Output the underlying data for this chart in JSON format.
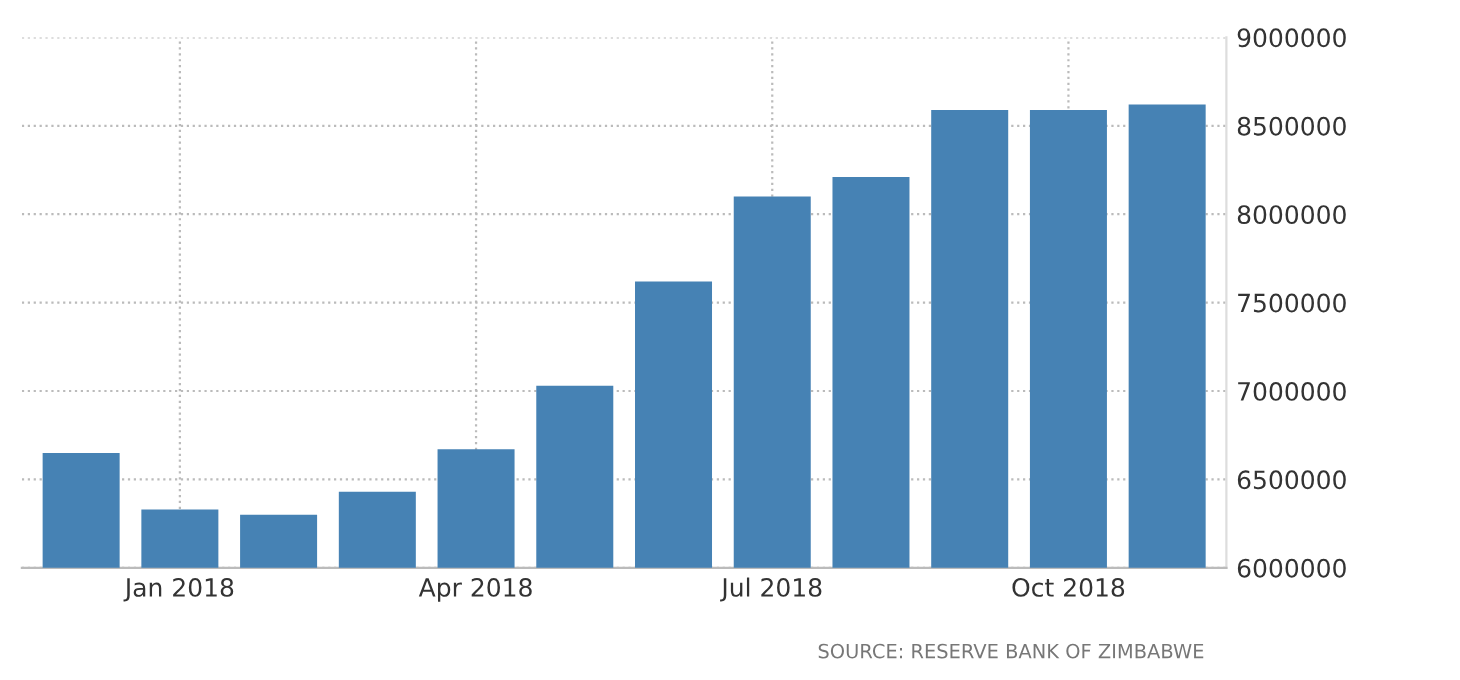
{
  "chart_data": {
    "type": "bar",
    "categories": [
      null,
      "Jan 2018",
      null,
      null,
      "Apr 2018",
      null,
      null,
      "Jul 2018",
      null,
      null,
      "Oct 2018",
      null
    ],
    "values": [
      6650000,
      6330000,
      6300000,
      6430000,
      6670000,
      7030000,
      7620000,
      8100000,
      8210000,
      8590000,
      8590000,
      8620000
    ],
    "color": "#4682b4",
    "ylim": [
      6000000,
      9000000
    ],
    "yticks": [
      6000000,
      6500000,
      7000000,
      7500000,
      8000000,
      8500000,
      9000000
    ],
    "grid": true,
    "annotations": [
      "SOURCE: RESERVE BANK OF ZIMBABWE"
    ]
  }
}
